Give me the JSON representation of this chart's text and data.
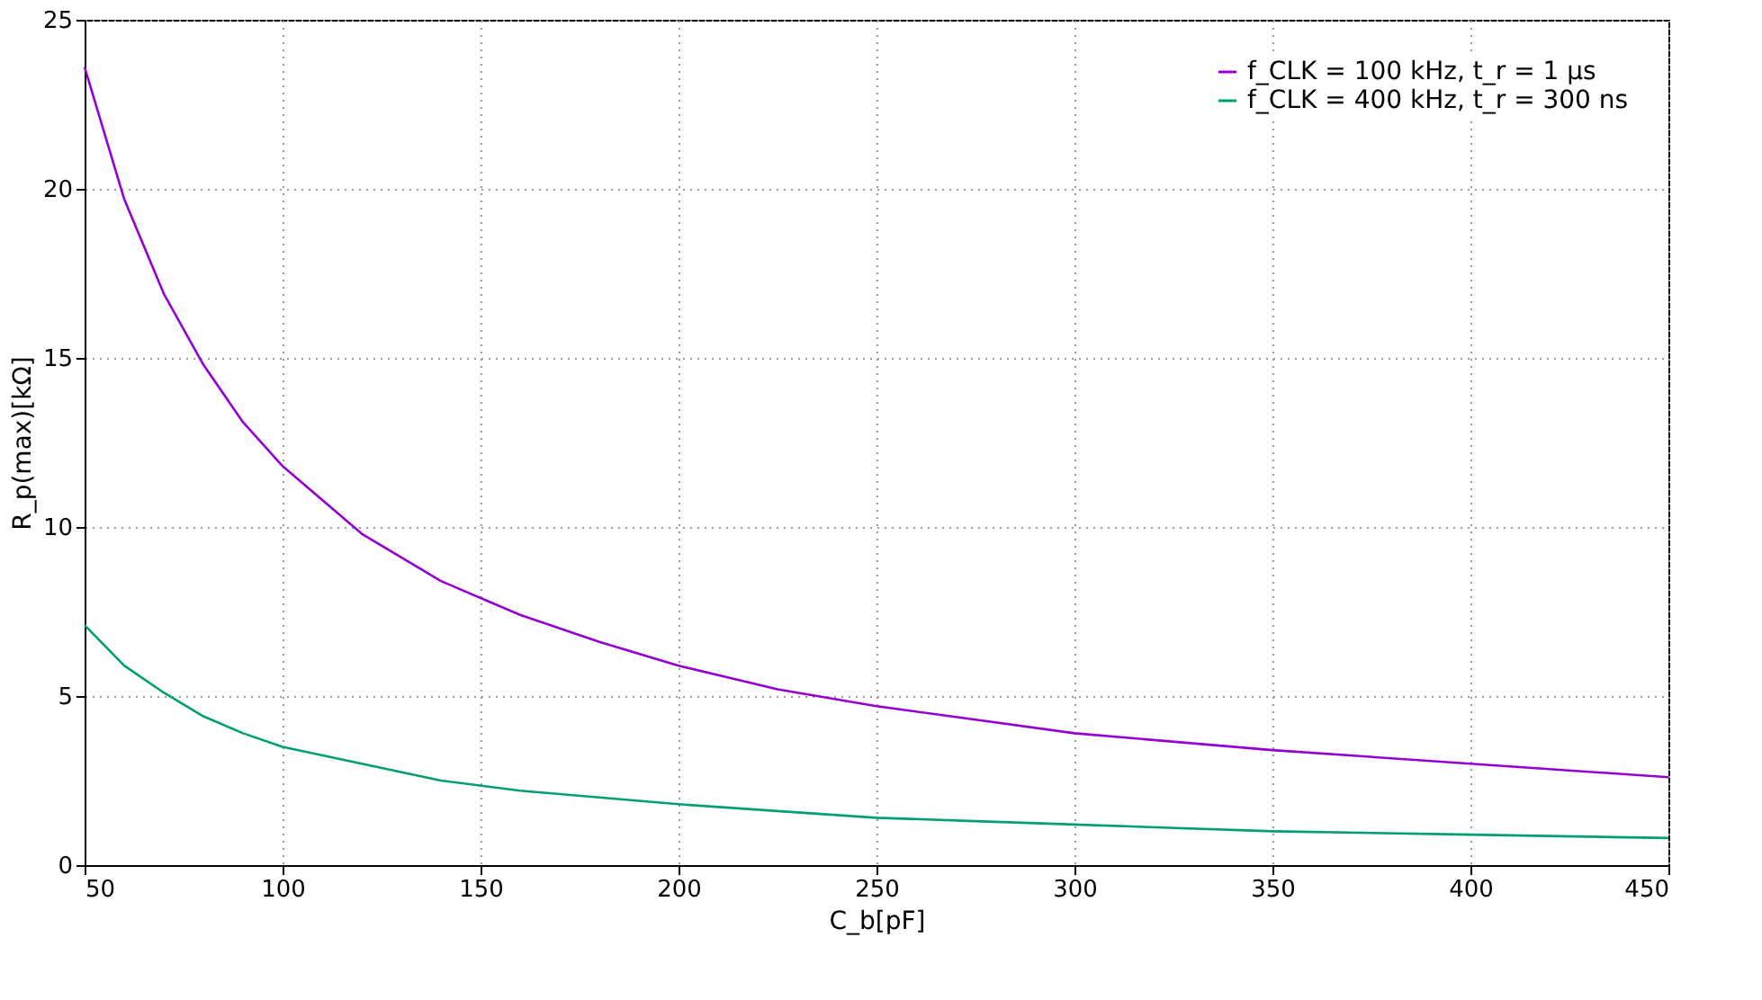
{
  "chart_data": {
    "type": "line",
    "xlabel": "C_b[pF]",
    "ylabel": "R_p(max)[kΩ]",
    "x": [
      50,
      60,
      70,
      80,
      90,
      100,
      120,
      140,
      160,
      180,
      200,
      225,
      250,
      275,
      300,
      350,
      400,
      450
    ],
    "series": [
      {
        "name": "f_CLK = 100 kHz, t_r = 1 µs",
        "color": "#9400d3",
        "values": [
          23.6,
          19.7,
          16.9,
          14.8,
          13.1,
          11.8,
          9.8,
          8.4,
          7.4,
          6.6,
          5.9,
          5.2,
          4.7,
          4.3,
          3.9,
          3.4,
          3.0,
          2.6
        ]
      },
      {
        "name": "f_CLK = 400 kHz, t_r = 300 ns",
        "color": "#009e73",
        "values": [
          7.1,
          5.9,
          5.1,
          4.4,
          3.9,
          3.5,
          3.0,
          2.5,
          2.2,
          2.0,
          1.8,
          1.6,
          1.4,
          1.3,
          1.2,
          1.0,
          0.9,
          0.8
        ]
      }
    ],
    "xlim": [
      50,
      450
    ],
    "ylim": [
      0,
      25
    ],
    "xticks": [
      50,
      100,
      150,
      200,
      250,
      300,
      350,
      400,
      450
    ],
    "yticks": [
      0,
      5,
      10,
      15,
      20,
      25
    ],
    "grid": true,
    "legend": "top right",
    "marker": "none",
    "line_style": "solid"
  }
}
